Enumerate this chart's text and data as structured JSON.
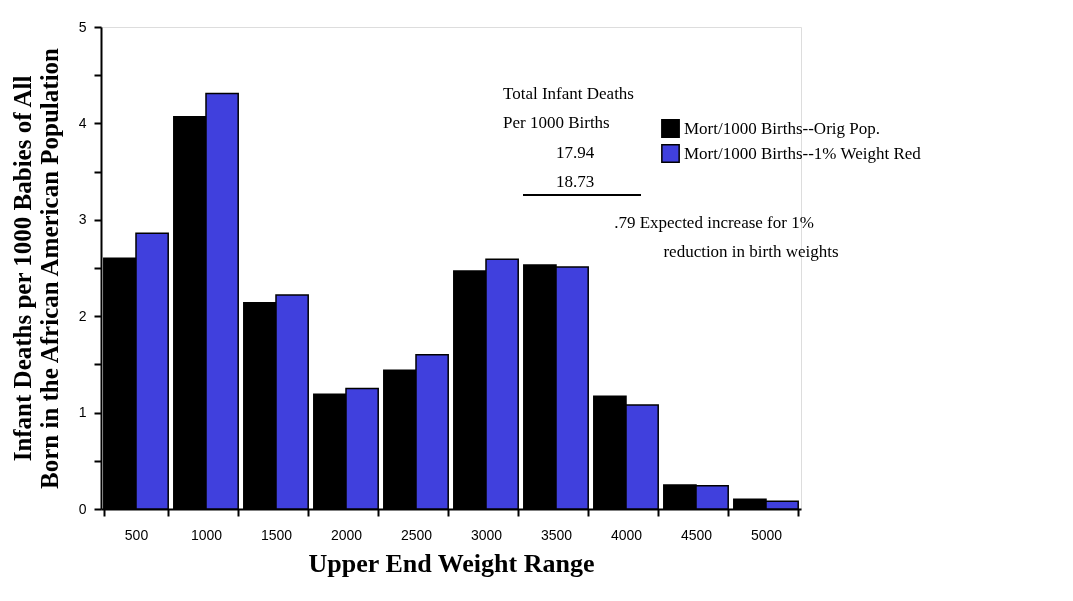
{
  "chart_data": {
    "type": "bar",
    "xlabel": "Upper End Weight Range",
    "ylabel": "Infant Deaths per 1000 Babies of All\nBorn in the African American Population",
    "categories": [
      "500",
      "1000",
      "1500",
      "2000",
      "2500",
      "3000",
      "3500",
      "4000",
      "4500",
      "5000"
    ],
    "series": [
      {
        "name": "Mort/1000 Births--Orig Pop.",
        "color": "#000000",
        "values": [
          2.6,
          4.07,
          2.14,
          1.19,
          1.44,
          2.47,
          2.53,
          1.17,
          0.25,
          0.1
        ]
      },
      {
        "name": "Mort/1000 Births--1% Weight Red",
        "color": "#4040dd",
        "values": [
          2.86,
          4.31,
          2.22,
          1.25,
          1.6,
          2.59,
          2.51,
          1.08,
          0.24,
          0.08
        ]
      }
    ],
    "ylim": [
      0,
      5
    ],
    "yticks": [
      0,
      {
        "value": 0.5,
        "label": null
      },
      1,
      {
        "value": 1.5,
        "label": null
      },
      2,
      {
        "value": 2.5,
        "label": null
      },
      3,
      {
        "value": 3.5,
        "label": null
      },
      4,
      {
        "value": 4.5,
        "label": null
      },
      5
    ],
    "annotations": [
      "Total Infant Deaths",
      "Per 1000 Births",
      "17.94",
      "18.73",
      ".79 Expected increase for 1%",
      "reduction in birth weights"
    ],
    "legend": "top right",
    "grid": false
  }
}
